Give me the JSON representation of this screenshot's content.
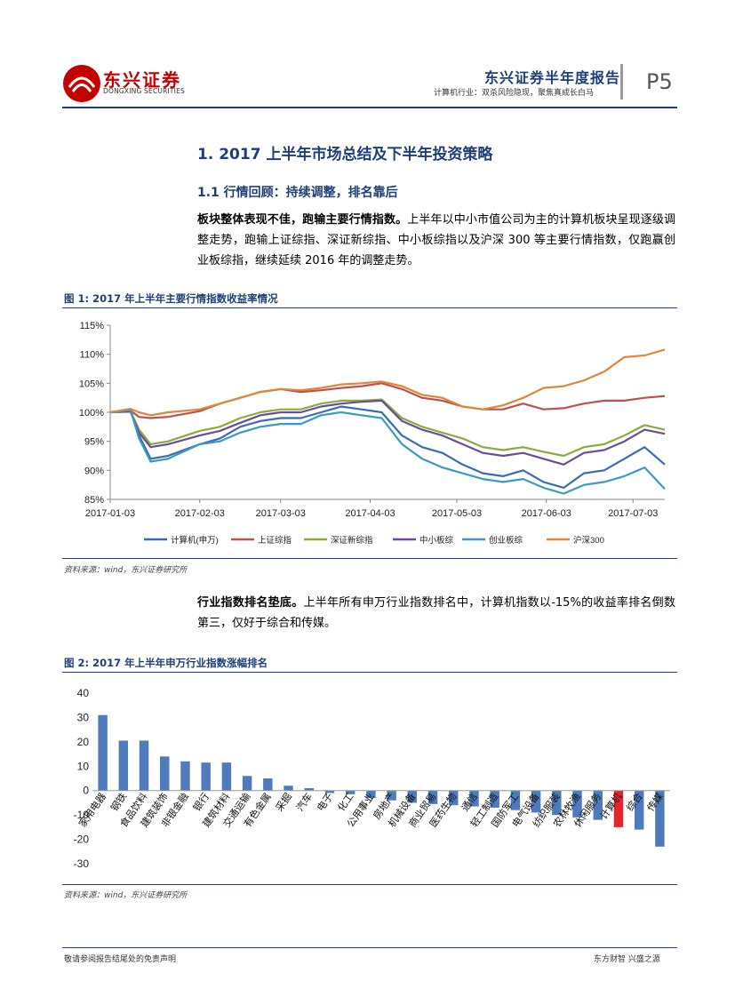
{
  "header": {
    "logo_cn": "东兴证券",
    "logo_en": "DONGXING SECURITIES",
    "report_title": "东兴证券半年度报告",
    "subtitle": "计算机行业：双杀风险隐现，聚焦真成长白马",
    "page": "P5"
  },
  "section": {
    "h1": "1. 2017 上半年市场总结及下半年投资策略",
    "h2": "1.1 行情回顾：持续调整，排名靠后",
    "para1_bold": "板块整体表现不佳，跑输主要行情指数。",
    "para1_text": "上半年以中小市值公司为主的计算机板块呈现逐级调整走势，跑输上证综指、深证新综指、中小板综指以及沪深 300 等主要行情指数，仅跑赢创业板综指，继续延续 2016 年的调整走势。",
    "para2_bold": "行业指数排名垫底。",
    "para2_text": "上半年所有申万行业指数排名中，计算机指数以-15%的收益率排名倒数第三，仅好于综合和传媒。"
  },
  "figure1": {
    "title": "图 1: 2017 年上半年主要行情指数收益率情况",
    "source": "资料来源：wind，东兴证券研究所"
  },
  "figure2": {
    "title": "图 2: 2017 年上半年申万行业指数涨幅排名",
    "source": "资料来源：wind，东兴证券研究所"
  },
  "footer": {
    "left": "敬请参阅报告结尾处的免责声明",
    "right": "东方财智 兴盛之源"
  },
  "colors": {
    "brand_blue": "#1f3e78",
    "brand_red": "#c40000"
  },
  "chart_data": [
    {
      "type": "line",
      "title": "2017 年上半年主要行情指数收益率情况",
      "x_ticks": [
        "2017-01-03",
        "2017-02-03",
        "2017-03-03",
        "2017-04-03",
        "2017-05-03",
        "2017-06-03",
        "2017-07-03"
      ],
      "y_ticks": [
        "85%",
        "90%",
        "95%",
        "100%",
        "105%",
        "110%",
        "115%"
      ],
      "ylim": [
        85,
        115
      ],
      "x_dates": [
        "2017-01-03",
        "2017-01-10",
        "2017-01-13",
        "2017-01-17",
        "2017-01-23",
        "2017-02-03",
        "2017-02-10",
        "2017-02-17",
        "2017-02-24",
        "2017-03-03",
        "2017-03-10",
        "2017-03-17",
        "2017-03-24",
        "2017-03-31",
        "2017-04-07",
        "2017-04-14",
        "2017-04-21",
        "2017-04-28",
        "2017-05-05",
        "2017-05-12",
        "2017-05-19",
        "2017-05-26",
        "2017-06-02",
        "2017-06-09",
        "2017-06-16",
        "2017-06-23",
        "2017-06-30",
        "2017-07-07",
        "2017-07-14"
      ],
      "series": [
        {
          "name": "计算机(申万)",
          "color": "#3a6cb4",
          "values": [
            100,
            100.5,
            96,
            92,
            92.5,
            94.5,
            95.5,
            97.5,
            98.5,
            99,
            99,
            100,
            101,
            100.5,
            100,
            96,
            94,
            93,
            91,
            89.5,
            89,
            90,
            88,
            87,
            89.5,
            90,
            92,
            94,
            91
          ]
        },
        {
          "name": "上证综指",
          "color": "#c0504d",
          "values": [
            100,
            100.3,
            99.2,
            99,
            99.2,
            100.2,
            101.5,
            102.5,
            103.5,
            104,
            103.5,
            103.8,
            104.2,
            104.5,
            105,
            104,
            102.5,
            102,
            101,
            100.5,
            100.5,
            101.5,
            100.5,
            100.7,
            101.5,
            102,
            102,
            102.5,
            102.8
          ]
        },
        {
          "name": "深证新综指",
          "color": "#8aad3a",
          "values": [
            100,
            100.2,
            97,
            94.5,
            95,
            96.8,
            97.5,
            99,
            100,
            100.5,
            100.5,
            101.5,
            102,
            102,
            102.2,
            99,
            97.5,
            96.5,
            95.5,
            94,
            93.5,
            94,
            93.2,
            92.5,
            94,
            94.5,
            96,
            97.8,
            97
          ]
        },
        {
          "name": "中小板综",
          "color": "#6b4c9a",
          "values": [
            100,
            100.1,
            96.5,
            94,
            94.5,
            96,
            96.8,
            98.2,
            99.5,
            100,
            100,
            101,
            101.5,
            101.8,
            102,
            98.5,
            97,
            96,
            94.5,
            93,
            92.5,
            93,
            92,
            91,
            93,
            93.5,
            95,
            97,
            96.3
          ]
        },
        {
          "name": "创业板综",
          "color": "#3a9bbf",
          "values": [
            100,
            100.4,
            95.5,
            91.5,
            92,
            94.5,
            95,
            96.5,
            97.5,
            98,
            98,
            99.5,
            100,
            99.5,
            99,
            94.5,
            92,
            90.5,
            89.5,
            88.5,
            88,
            88.5,
            87,
            86,
            87.5,
            88,
            89,
            90.5,
            86.8
          ]
        },
        {
          "name": "沪深300",
          "color": "#e0863a",
          "values": [
            100,
            100.6,
            100,
            99.5,
            100,
            100.5,
            101.5,
            102.5,
            103.5,
            104,
            103.8,
            104.2,
            104.8,
            105,
            105.3,
            104.5,
            103,
            102.5,
            101,
            100.5,
            101.2,
            102.5,
            104.2,
            104.5,
            105.5,
            107,
            109.5,
            109.8,
            110.8
          ]
        }
      ]
    },
    {
      "type": "bar",
      "title": "2017 年上半年申万行业指数涨幅排名",
      "ylim": [
        -30,
        40
      ],
      "y_ticks": [
        "40",
        "30",
        "20",
        "10",
        "0",
        "-10",
        "-20",
        "-30"
      ],
      "categories": [
        "家用电器",
        "钢铁",
        "食品饮料",
        "建筑装饰",
        "非银金融",
        "银行",
        "建筑材料",
        "交通运输",
        "有色金属",
        "采掘",
        "汽车",
        "电子",
        "化工",
        "公用事业",
        "房地产",
        "机械设备",
        "商业贸易",
        "医药生物",
        "通信",
        "轻工制造",
        "国防军工",
        "电气设备",
        "纺织服装",
        "农林牧渔",
        "休闲服务",
        "计算机",
        "综合",
        "传媒"
      ],
      "values": [
        31,
        20.5,
        20.5,
        14,
        12,
        11.5,
        11.5,
        6,
        5,
        2,
        1,
        -1,
        -1.5,
        -3,
        -4,
        -5,
        -5.5,
        -6,
        -6.5,
        -7,
        -8,
        -9,
        -10,
        -11,
        -12,
        -15,
        -16,
        -23
      ],
      "colors": {
        "default": "#4f7bbd",
        "highlight": "#e8232a"
      },
      "highlight": "计算机"
    }
  ]
}
